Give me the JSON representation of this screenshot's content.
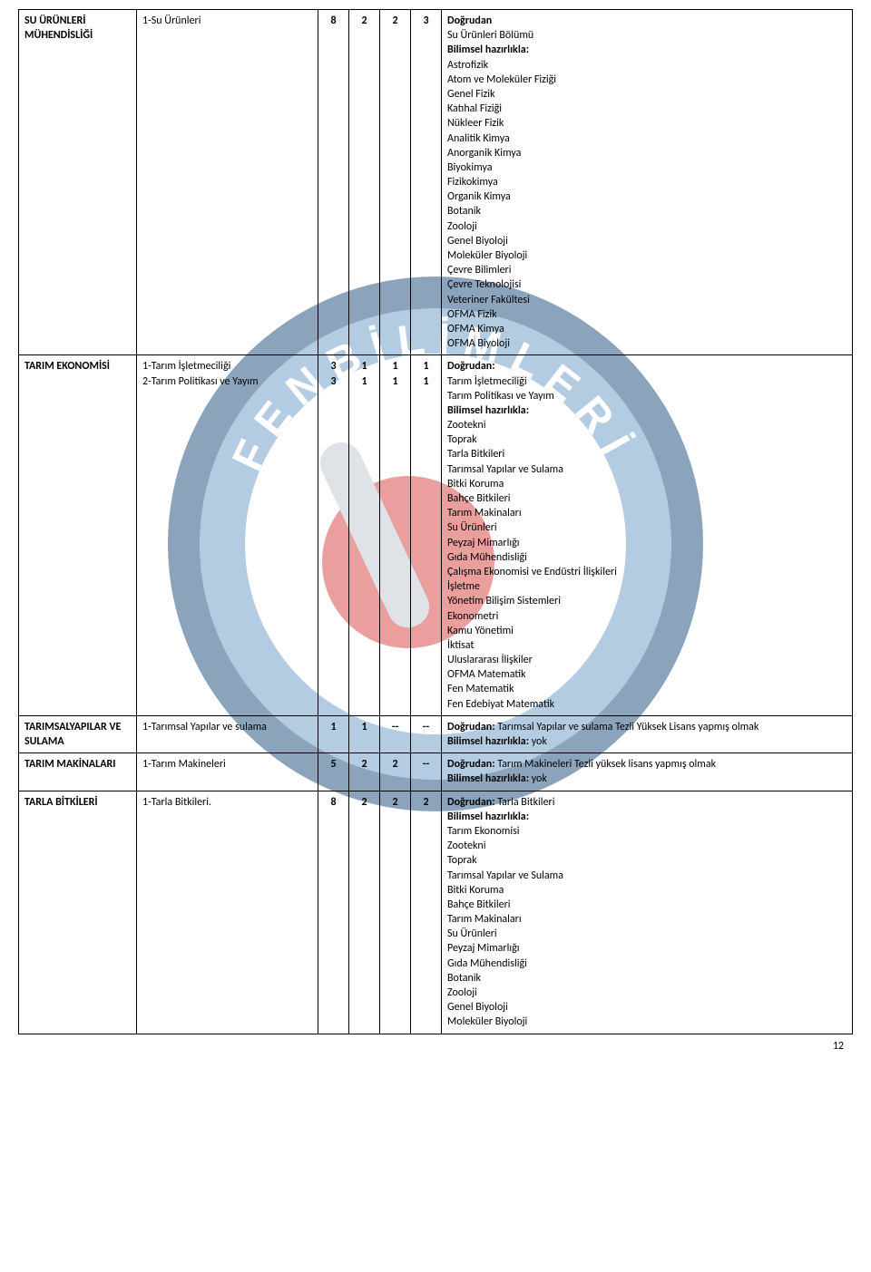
{
  "page_number": "12",
  "logo": {
    "ring_dark": "#1a4a7a",
    "ring_light": "#6a9bc4",
    "center_circle": "#d84040",
    "tube_color": "#c0c8d0",
    "text_color": "#ffffff"
  },
  "rows": [
    {
      "dept": "SU ÜRÜNLERİ MÜHENDİSLİĞİ",
      "items": "1-Su Ürünleri",
      "cols": [
        "8",
        "2",
        "2",
        "3"
      ],
      "desc": "Doğrudan\nSu Ürünleri Bölümü\nBilimsel hazırlıkla:\nAstrofizik\nAtom ve Moleküler Fiziği\nGenel Fizik\nKatıhal Fiziği\nNükleer Fizik\nAnalitik Kimya\nAnorganik Kimya\nBiyokimya\nFizikokimya\nOrganik Kimya\nBotanik\nZooloji\nGenel Biyoloji\nMoleküler Biyoloji\nÇevre Bilimleri\nÇevre Teknolojisi\nVeteriner Fakültesi\nOFMA Fizik\nOFMA Kimya\nOFMA Biyoloji"
    },
    {
      "dept": "TARIM EKONOMİSİ",
      "items": "1-Tarım İşletmeciliği\n2-Tarım Politikası ve Yayım",
      "cols": [
        "3\n3",
        "1\n1",
        "1\n1",
        "1\n1"
      ],
      "desc": "Doğrudan:\nTarım İşletmeciliği\nTarım Politikası ve Yayım\nBilimsel hazırlıkla:\nZootekni\nToprak\nTarla Bitkileri\nTarımsal Yapılar ve Sulama\nBitki Koruma\nBahçe Bitkileri\nTarım Makinaları\nSu Ürünleri\nPeyzaj Mimarlığı\nGıda Mühendisliği\nÇalışma Ekonomisi ve Endüstri İlişkileri\nİşletme\nYönetim Bilişim Sistemleri\nEkonometri\nKamu Yönetimi\nİktisat\nUluslararası İlişkiler\nOFMA Matematik\nFen Matematik\nFen Edebiyat Matematik"
    },
    {
      "dept": "TARIMSALYAPILAR VE SULAMA",
      "items": "1-Tarımsal Yapılar ve sulama",
      "cols": [
        "1",
        "1",
        "--",
        "--"
      ],
      "desc": "Doğrudan: Tarımsal Yapılar ve sulama Tezli Yüksek Lisans yapmış olmak\nBilimsel hazırlıkla: yok"
    },
    {
      "dept": "TARIM MAKİNALARI",
      "items": "1-Tarım Makineleri",
      "cols": [
        "5",
        "2",
        "2",
        "--"
      ],
      "desc": "Doğrudan: Tarım Makineleri Tezli yüksek lisans yapmış olmak\nBilimsel hazırlıkla: yok"
    },
    {
      "dept": "TARLA BİTKİLERİ",
      "items": "1-Tarla Bitkileri.",
      "cols": [
        "8",
        "2",
        "2",
        "2"
      ],
      "desc": "Doğrudan: Tarla Bitkileri\nBilimsel hazırlıkla:\nTarım Ekonomisi\nZootekni\nToprak\nTarımsal Yapılar ve Sulama\nBitki Koruma\nBahçe Bitkileri\nTarım Makinaları\nSu Ürünleri\nPeyzaj Mimarlığı\nGıda Mühendisliği\nBotanik\nZooloji\nGenel Biyoloji\nMoleküler Biyoloji"
    }
  ]
}
